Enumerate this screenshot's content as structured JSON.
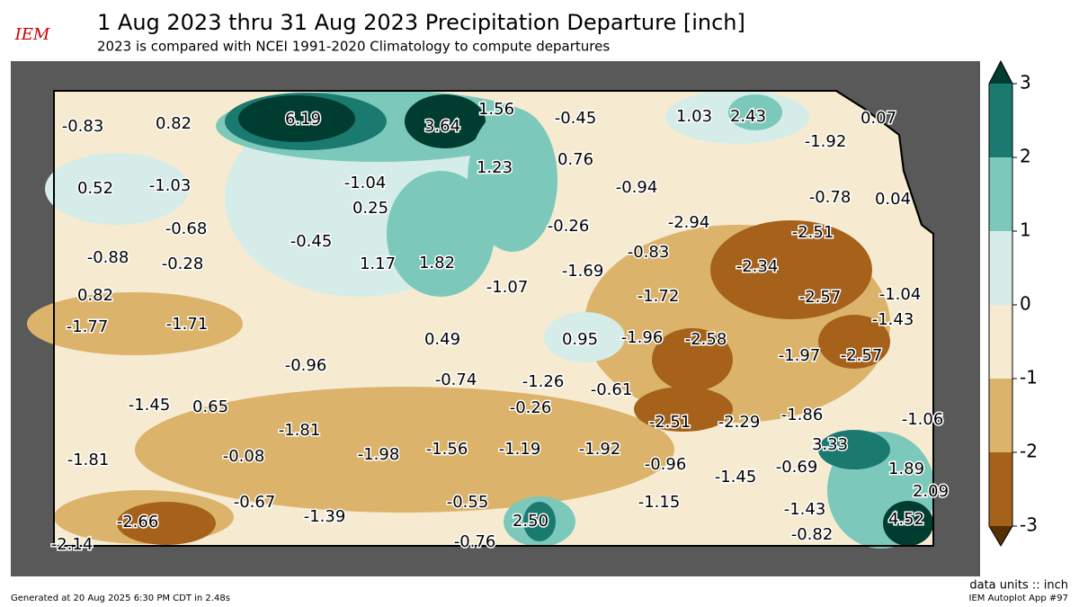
{
  "header": {
    "logo": "IEM",
    "title": "1 Aug 2023 thru 31 Aug 2023 Precipitation Departure [inch]",
    "subtitle": "2023 is compared with NCEI 1991-2020 Climatology to compute departures"
  },
  "map": {
    "labels": [
      "-0.83",
      "0.82",
      "6.19",
      "3.64",
      "1.56",
      "-0.45",
      "1.03",
      "2.43",
      "0.07",
      "-1.92",
      "1.23",
      "0.76",
      "0.52",
      "-1.03",
      "-1.04",
      "-0.94",
      "-0.78",
      "0.04",
      "0.25",
      "-2.94",
      "-0.68",
      "-0.26",
      "-2.51",
      "-0.45",
      "-0.83",
      "-0.88",
      "-0.28",
      "1.17",
      "1.82",
      "-2.34",
      "-1.69",
      "-1.07",
      "0.82",
      "-1.72",
      "-2.57",
      "-1.04",
      "-1.77",
      "-1.71",
      "-1.43",
      "0.49",
      "0.95",
      "-1.96",
      "-2.58",
      "-1.97",
      "-2.57",
      "-0.96",
      "-0.74",
      "-1.26",
      "-0.61",
      "-1.45",
      "0.65",
      "-0.26",
      "-1.86",
      "-1.06",
      "-2.51",
      "-2.29",
      "-1.81",
      "3.33",
      "-1.56",
      "-1.19",
      "-1.92",
      "-1.98",
      "-0.08",
      "-1.81",
      "-0.96",
      "-0.69",
      "1.89",
      "-1.45",
      "2.09",
      "-0.55",
      "-0.67",
      "-1.15",
      "-1.43",
      "2.50",
      "-2.66",
      "-1.39",
      "4.52",
      "-0.82",
      "-0.76",
      "-2.14"
    ]
  },
  "colorbar": {
    "ticks": [
      -3,
      -2,
      -1,
      0,
      1,
      2,
      3
    ],
    "colors": [
      "#a6611a",
      "#dbb36b",
      "#f6ebd1",
      "#d5ece9",
      "#7cc8bb",
      "#1b7a70"
    ],
    "under": "#543005",
    "over": "#003c30",
    "units": "data units :: inch"
  },
  "footer": {
    "generated": "Generated at 20 Aug 2025 6:30 PM CDT in 2.48s",
    "app": "IEM Autoplot App #97"
  }
}
